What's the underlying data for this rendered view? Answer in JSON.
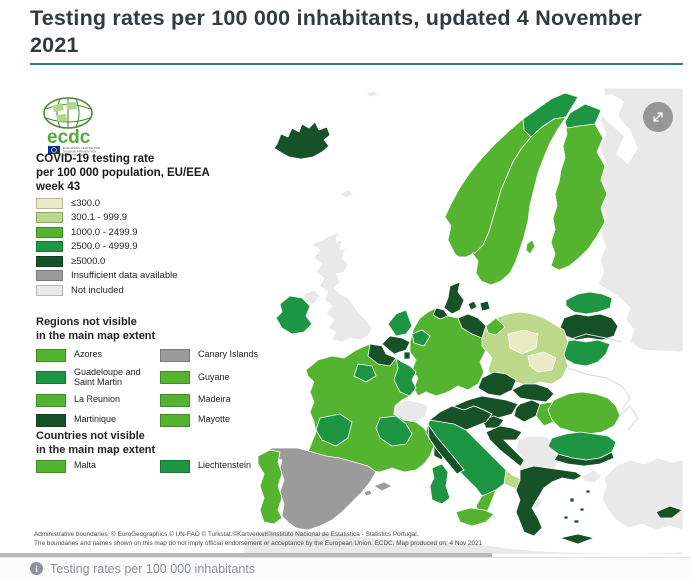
{
  "page": {
    "title": "Testing rates per 100 000 inhabitants, updated 4 November 2021",
    "footer_caption": "Testing rates per 100 000 inhabitants"
  },
  "logo": {
    "brand": "ecdc",
    "org_lines": [
      "EUROPEAN CENTRE FOR",
      "DISEASE PREVENTION",
      "AND CONTROL"
    ]
  },
  "legend": {
    "title_line1": "COVID-19 testing rate",
    "title_line2": "per 100 000 population, EU/EEA",
    "title_line3": "week 43",
    "items": [
      {
        "label": "≤300.0",
        "color": "#e9ecc3"
      },
      {
        "label": "300.1 - 999.9",
        "color": "#bcd98b"
      },
      {
        "label": "1000.0 - 2499.9",
        "color": "#54b32f"
      },
      {
        "label": "2500.0 - 4999.9",
        "color": "#1d9543"
      },
      {
        "label": "≥5000.0",
        "color": "#175128"
      },
      {
        "label": "Insufficient data available",
        "color": "#9b9b9b"
      },
      {
        "label": "Not included",
        "color": "#e9e9e9"
      }
    ]
  },
  "regions_not_visible": {
    "title_line1": "Regions not visible",
    "title_line2": "in the main map extent",
    "items": [
      {
        "label": "Azores",
        "color": "#54b32f"
      },
      {
        "label": "Canary Islands",
        "color": "#9b9b9b"
      },
      {
        "label": "Guadeloupe and Saint Martin",
        "color": "#1d9543"
      },
      {
        "label": "Guyane",
        "color": "#54b32f"
      },
      {
        "label": "La Reunion",
        "color": "#54b32f"
      },
      {
        "label": "Madeira",
        "color": "#54b32f"
      },
      {
        "label": "Martinique",
        "color": "#175128"
      },
      {
        "label": "Mayotte",
        "color": "#54b32f"
      }
    ]
  },
  "countries_not_visible": {
    "title_line1": "Countries not visible",
    "title_line2": "in the main map extent",
    "items": [
      {
        "label": "Malta",
        "color": "#54b32f"
      },
      {
        "label": "Liechtenstein",
        "color": "#1d9543"
      }
    ]
  },
  "attribution": {
    "line1": "Administrative boundaries: © EuroGeographics © UN-FAO © Turkstat.©Kartverket©Instituto Nacional de Estatistica - Statistics Portugal.",
    "line2": "The boundaries and names shown on this map do not imply official endorsement or acceptance by the European Union. ECDC. Map produced on: 4 Nov 2021"
  },
  "map": {
    "category_colors": {
      "le300": "#e9ecc3",
      "b300_999": "#bcd98b",
      "b1000_2499": "#54b32f",
      "b2500_4999": "#1d9543",
      "ge5000": "#175128",
      "insufficient": "#9b9b9b",
      "not_included": "#e9e9e9"
    },
    "regions": {
      "iceland": "ge5000",
      "svalbard": "not_included",
      "faroe": "not_included",
      "norway": "b1000_2499",
      "norway_north": "b2500_4999",
      "sweden": "b1000_2499",
      "gotland": "b1000_2499",
      "finland": "b1000_2499",
      "finland_north": "b2500_4999",
      "russia": "not_included",
      "kaliningrad": "not_included",
      "estonia": "b2500_4999",
      "latvia": "ge5000",
      "lithuania": "b2500_4999",
      "denmark": "ge5000",
      "denmark_isles": "ge5000",
      "uk": "not_included",
      "uk_ni": "not_included",
      "ireland": "b2500_4999",
      "netherlands": "b2500_4999",
      "belgium": "ge5000",
      "luxembourg": "ge5000",
      "germany": "b1000_2499",
      "germany_n": "ge5000",
      "germany_ne": "ge5000",
      "germany_w": "b2500_4999",
      "poland": "b300_999",
      "poland_nw": "b1000_2499",
      "poland_c1": "le300",
      "poland_c2": "le300",
      "czechia": "ge5000",
      "slovakia": "ge5000",
      "austria": "ge5000",
      "switzerland": "not_included",
      "hungary_w": "ge5000",
      "hungary_e": "b1000_2499",
      "slovenia": "ge5000",
      "croatia": "ge5000",
      "balkans": "not_included",
      "france": "b1000_2499",
      "france_n": "ge5000",
      "france_paris": "b2500_4999",
      "france_e": "b2500_4999",
      "france_sw": "b2500_4999",
      "france_se": "b2500_4999",
      "corsica": "ge5000",
      "spain": "insufficient",
      "balearics": "insufficient",
      "portugal": "b1000_2499",
      "italy": "b2500_4999",
      "italy_n": "ge5000",
      "italy_c": "ge5000",
      "italy_puglia": "b300_999",
      "italy_s": "b1000_2499",
      "sicily": "b1000_2499",
      "sardinia": "b2500_4999",
      "romania": "b1000_2499",
      "bulgaria": "b2500_4999",
      "bulgaria_s": "ge5000",
      "greece": "ge5000",
      "crete": "ge5000",
      "aegean": "ge5000",
      "turkey": "not_included",
      "turkey_eu": "not_included",
      "cyprus": "ge5000",
      "north_africa": "not_included"
    }
  }
}
